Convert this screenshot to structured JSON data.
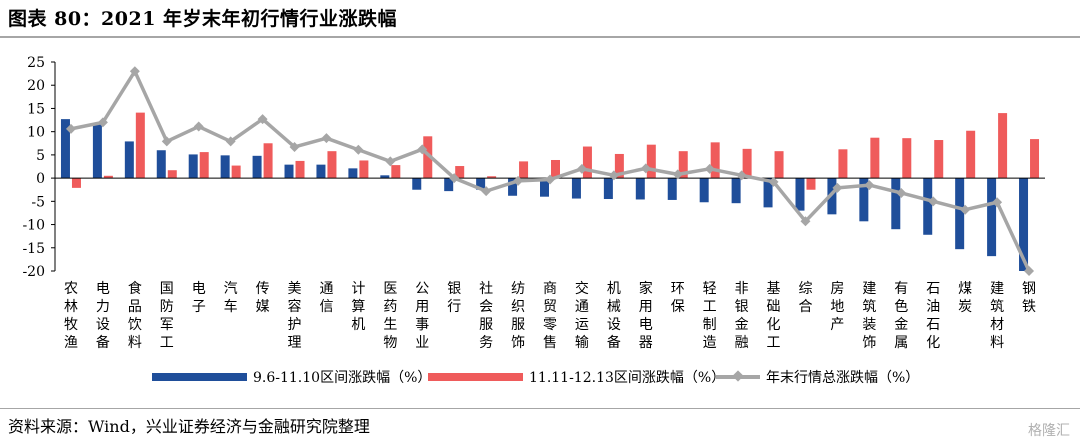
{
  "title": "图表 80：2021 年岁末年初行情行业涨跌幅",
  "source": "资料来源：Wind，兴业证券经济与金融研究院整理",
  "watermark": "格隆汇",
  "colors": {
    "blue": "#1f4e9a",
    "red": "#ef5b5b",
    "gray": "#a6a6a6"
  },
  "chart_data": {
    "type": "bar",
    "ylim": [
      -20,
      25
    ],
    "yticks": [
      -20,
      -15,
      -10,
      -5,
      0,
      5,
      10,
      15,
      20,
      25
    ],
    "categories": [
      "农林牧渔",
      "电力设备",
      "食品饮料",
      "国防军工",
      "电子",
      "汽车",
      "传媒",
      "美容护理",
      "通信",
      "计算机",
      "医药生物",
      "公用事业",
      "银行",
      "社会服务",
      "纺织服饰",
      "商贸零售",
      "交通运输",
      "机械设备",
      "家用电器",
      "环保",
      "轻工制造",
      "非银金融",
      "基础化工",
      "综合",
      "房地产",
      "建筑装饰",
      "有色金属",
      "石油石化",
      "煤炭",
      "建筑材料",
      "钢铁"
    ],
    "series": [
      {
        "name": "9.6-11.10区间涨跌幅（%）",
        "kind": "bar",
        "values": [
          12.7,
          11.8,
          7.9,
          6.0,
          5.1,
          4.9,
          4.8,
          2.9,
          2.9,
          2.1,
          0.6,
          -2.5,
          -2.8,
          -2.5,
          -3.8,
          -4.0,
          -4.4,
          -4.5,
          -4.6,
          -4.7,
          -5.2,
          -5.4,
          -6.3,
          -7.0,
          -7.8,
          -9.3,
          -11.0,
          -12.2,
          -15.3,
          -16.8,
          -20.0
        ]
      },
      {
        "name": "11.11-12.13区间涨跌幅（%）",
        "kind": "bar",
        "values": [
          -2.1,
          0.5,
          14.1,
          1.7,
          5.6,
          2.7,
          7.5,
          3.7,
          5.8,
          3.8,
          2.8,
          9.0,
          2.6,
          0.4,
          3.6,
          3.9,
          6.8,
          5.2,
          7.2,
          5.8,
          7.7,
          6.3,
          5.8,
          -2.5,
          6.2,
          8.7,
          8.6,
          8.2,
          10.2,
          14.0,
          8.4
        ]
      },
      {
        "name": "年末行情总涨跌幅（%）",
        "kind": "line",
        "values": [
          10.6,
          12.0,
          23.0,
          7.9,
          11.1,
          7.9,
          12.7,
          6.7,
          8.6,
          6.1,
          3.6,
          6.2,
          0.0,
          -2.8,
          -0.6,
          -0.3,
          2.0,
          0.6,
          2.1,
          0.8,
          2.0,
          0.6,
          -0.8,
          -9.3,
          -2.1,
          -1.5,
          -3.2,
          -5.0,
          -6.8,
          -5.2,
          -20.0
        ]
      }
    ]
  }
}
